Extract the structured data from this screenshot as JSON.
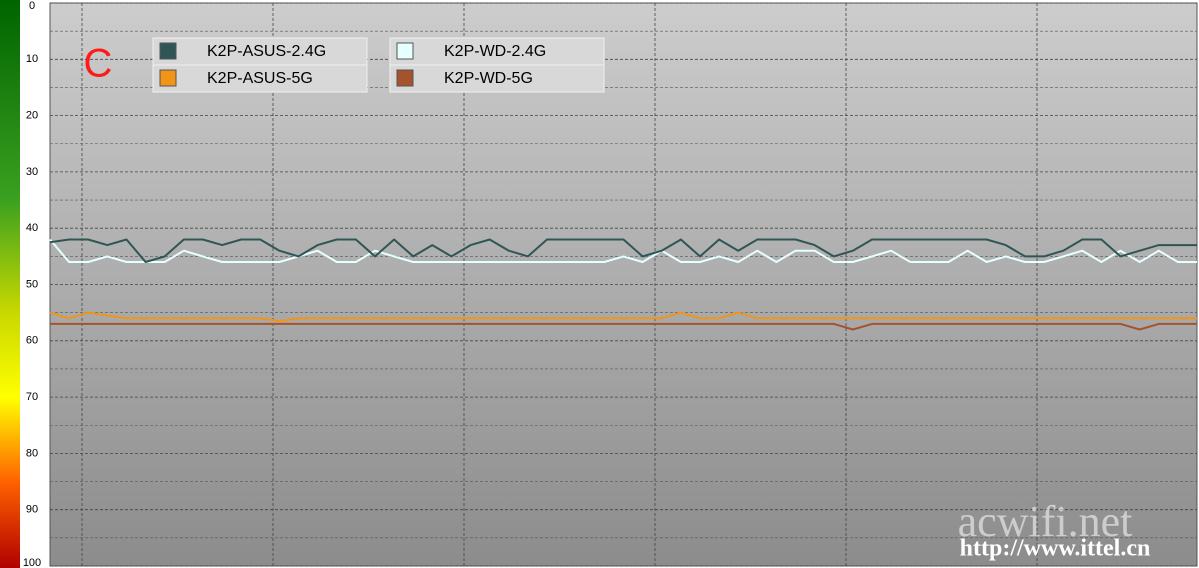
{
  "chart_data": {
    "type": "line",
    "mark": "C",
    "watermarks": [
      "acwifi.net",
      "http://www.ittel.cn"
    ],
    "ylim": [
      0,
      100
    ],
    "yticks": [
      0,
      10,
      20,
      30,
      40,
      50,
      60,
      70,
      80,
      90,
      100
    ],
    "y_inverted": true,
    "grid": true,
    "series": [
      {
        "name": "K2P-ASUS-2.4G",
        "color": "#2f5654",
        "values": [
          42.5,
          42,
          42,
          43,
          42,
          46,
          45,
          42,
          42,
          43,
          42,
          42,
          44,
          45,
          43,
          42,
          42,
          45,
          42,
          45,
          43,
          45,
          43,
          42,
          44,
          45,
          42,
          42,
          42,
          42,
          42,
          45,
          44,
          42,
          45,
          42,
          44,
          42,
          42,
          42,
          43,
          45,
          44,
          42,
          42,
          42,
          42,
          42,
          42,
          42,
          43,
          45,
          45,
          44,
          42,
          42,
          45,
          44,
          43,
          43,
          43
        ]
      },
      {
        "name": "K2P-WD-2.4G",
        "color": "#e6ffff",
        "values": [
          42,
          46,
          46,
          45,
          46,
          46,
          46,
          44,
          45,
          46,
          46,
          46,
          46,
          45,
          44,
          46,
          46,
          44,
          45,
          46,
          46,
          46,
          46,
          46,
          46,
          46,
          46,
          46,
          46,
          46,
          45,
          46,
          44,
          46,
          46,
          45,
          46,
          44,
          46,
          44,
          44,
          46,
          46,
          45,
          44,
          46,
          46,
          46,
          44,
          46,
          45,
          46,
          46,
          45,
          44,
          46,
          44,
          46,
          44,
          46,
          46
        ]
      },
      {
        "name": "K2P-ASUS-5G",
        "color": "#f29418",
        "values": [
          55,
          56,
          55,
          55.5,
          56,
          56,
          56,
          56,
          56,
          56,
          56,
          56,
          56.5,
          56,
          56,
          56,
          56,
          56,
          56,
          56,
          56,
          56,
          56,
          56,
          56,
          56,
          56,
          56,
          56,
          56,
          56,
          56,
          56,
          55,
          56,
          56,
          55,
          56,
          56,
          56,
          56,
          56,
          56,
          56,
          56,
          56,
          56,
          56,
          56,
          56,
          56,
          56,
          56,
          56,
          56,
          56,
          56,
          56,
          56,
          56,
          56
        ]
      },
      {
        "name": "K2P-WD-5G",
        "color": "#a4532c",
        "values": [
          57,
          57,
          57,
          57,
          57,
          57,
          57,
          57,
          57,
          57,
          57,
          57,
          57,
          57,
          57,
          57,
          57,
          57,
          57,
          57,
          57,
          57,
          57,
          57,
          57,
          57,
          57,
          57,
          57,
          57,
          57,
          57,
          57,
          57,
          57,
          57,
          57,
          57,
          57,
          57,
          57,
          57,
          58,
          57,
          57,
          57,
          57,
          57,
          57,
          57,
          57,
          57,
          57,
          57,
          57,
          57,
          57,
          58,
          57,
          57,
          57
        ]
      }
    ]
  }
}
